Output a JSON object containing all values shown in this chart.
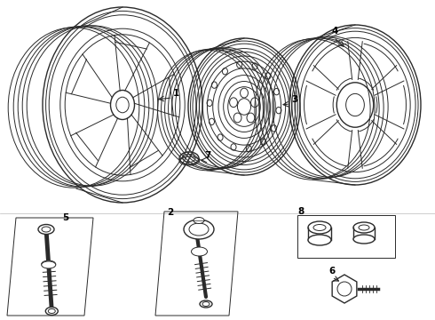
{
  "bg_color": "#ffffff",
  "line_color": "#2a2a2a",
  "label_color": "#000000",
  "figsize": [
    4.9,
    3.6
  ],
  "dpi": 100
}
